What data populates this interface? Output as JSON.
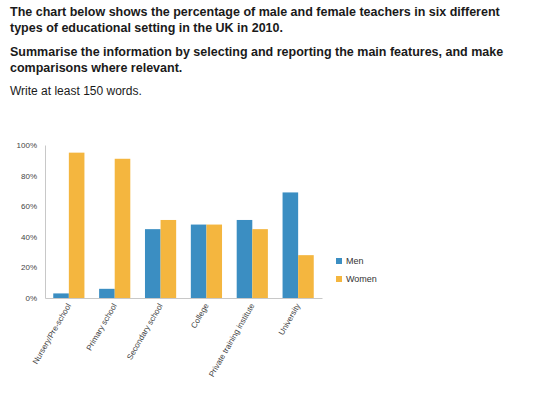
{
  "chart_data": {
    "type": "bar",
    "title": "The chart below shows the percentage of male and female teachers in six different types of educational setting in the UK in 2010.",
    "subtitle": "Summarise the information by selecting and reporting the main features, and make comparisons where relevant.",
    "annotations": [
      "Write at least 150 words."
    ],
    "categories": [
      "Nursery/Pre-school",
      "Primary school",
      "Secondary school",
      "College",
      "Private training institute",
      "University"
    ],
    "series": [
      {
        "name": "Men",
        "color": "#3b8ec2",
        "values": [
          3,
          6,
          45,
          48,
          51,
          69
        ]
      },
      {
        "name": "Women",
        "color": "#f4b63f",
        "values": [
          95,
          91,
          51,
          48,
          45,
          28
        ]
      }
    ],
    "ylim": [
      0,
      100
    ],
    "yticks": [
      {
        "value": 0,
        "label": "0%"
      },
      {
        "value": 20,
        "label": "20%"
      },
      {
        "value": 40,
        "label": "40%"
      },
      {
        "value": 60,
        "label": "60%"
      },
      {
        "value": 80,
        "label": "80%"
      },
      {
        "value": 100,
        "label": "100%"
      }
    ],
    "grid": false,
    "legend": "right"
  }
}
